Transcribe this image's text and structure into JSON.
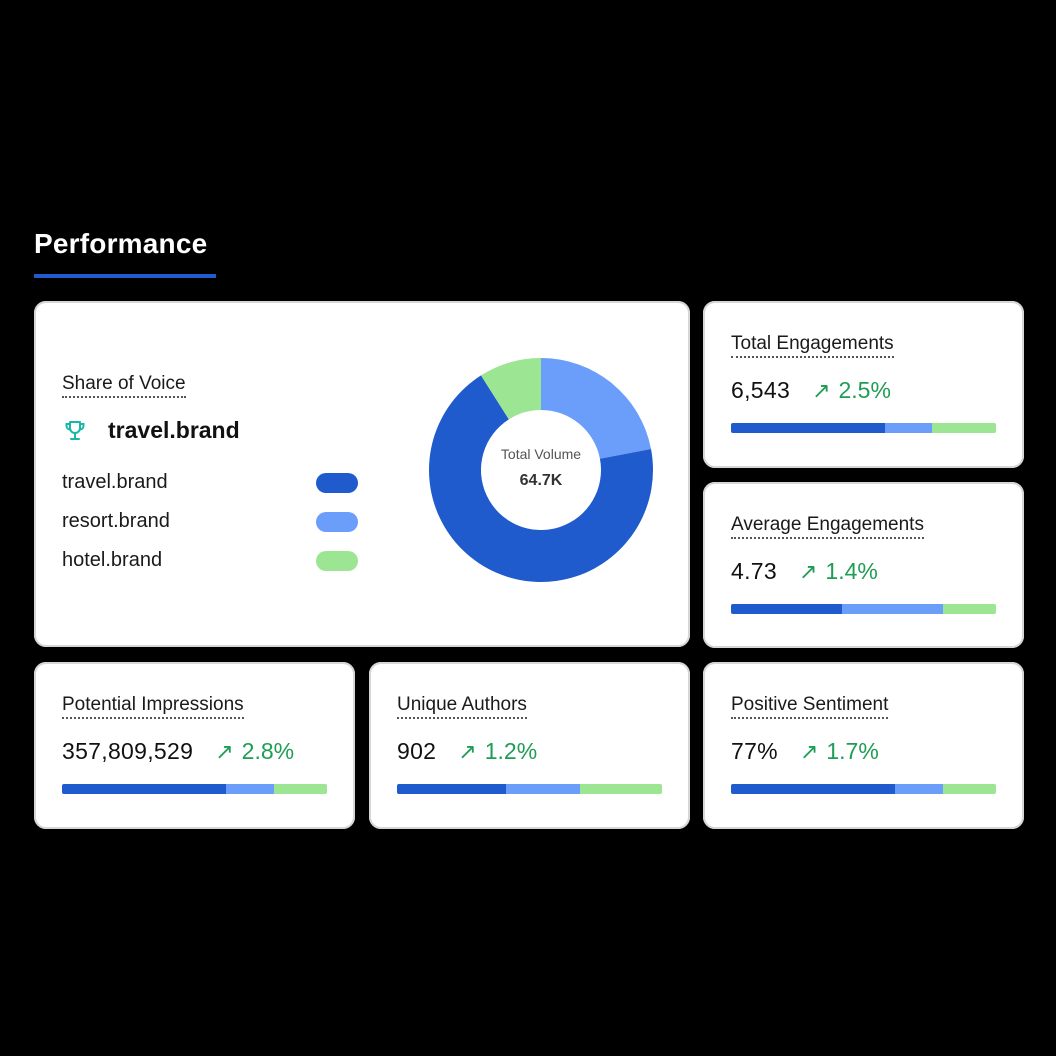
{
  "section": {
    "title": "Performance"
  },
  "colors": {
    "dark_blue": "#1f5bcc",
    "light_blue": "#6b9dfb",
    "green": "#9ce592",
    "trend_up": "#1f9d55",
    "trophy": "#17b8a6"
  },
  "share_of_voice": {
    "label": "Share of Voice",
    "leader_icon": "trophy-icon",
    "leader": "travel.brand",
    "legend": [
      {
        "label": "travel.brand",
        "color": "#1f5bcc"
      },
      {
        "label": "resort.brand",
        "color": "#6b9dfb"
      },
      {
        "label": "hotel.brand",
        "color": "#9ce592"
      }
    ],
    "center_caption": "Total Volume",
    "center_value": "64.7K"
  },
  "chart_data": {
    "type": "pie",
    "donut": true,
    "categories": [
      "travel.brand",
      "resort.brand",
      "hotel.brand"
    ],
    "values": [
      69,
      22,
      9
    ],
    "colors": [
      "#1f5bcc",
      "#6b9dfb",
      "#9ce592"
    ]
  },
  "metrics": {
    "total_engagements": {
      "label": "Total Engagements",
      "value": "6,543",
      "change": "2.5%",
      "trend_icon": "arrow-up-right-icon",
      "split": [
        58,
        18,
        24
      ]
    },
    "average_engagements": {
      "label": "Average Engagements",
      "value": "4.73",
      "change": "1.4%",
      "trend_icon": "arrow-up-right-icon",
      "split": [
        42,
        38,
        20
      ]
    },
    "potential_impressions": {
      "label": "Potential Impressions",
      "value": "357,809,529",
      "change": "2.8%",
      "trend_icon": "arrow-up-right-icon",
      "split": [
        62,
        18,
        20
      ]
    },
    "unique_authors": {
      "label": "Unique Authors",
      "value": "902",
      "change": "1.2%",
      "trend_icon": "arrow-up-right-icon",
      "split": [
        41,
        28,
        31
      ]
    },
    "positive_sentiment": {
      "label": "Positive Sentiment",
      "value": "77%",
      "change": "1.7%",
      "trend_icon": "arrow-up-right-icon",
      "split": [
        62,
        18,
        20
      ]
    }
  }
}
